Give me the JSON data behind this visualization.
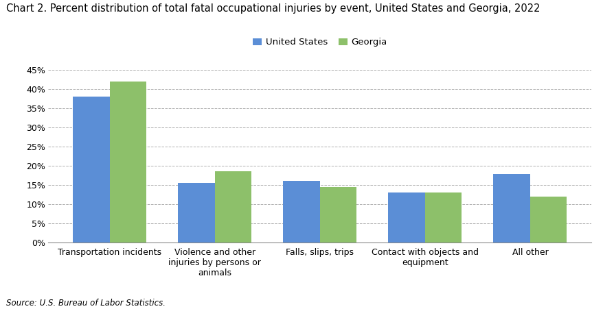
{
  "title": "Chart 2. Percent distribution of total fatal occupational injuries by event, United States and Georgia, 2022",
  "categories": [
    "Transportation incidents",
    "Violence and other\ninjuries by persons or\nanimals",
    "Falls, slips, trips",
    "Contact with objects and\nequipment",
    "All other"
  ],
  "us_values": [
    38.0,
    15.5,
    16.0,
    13.0,
    17.8
  ],
  "ga_values": [
    42.0,
    18.5,
    14.5,
    13.0,
    12.0
  ],
  "us_color": "#5B8ED6",
  "ga_color": "#8DC06A",
  "us_label": "United States",
  "ga_label": "Georgia",
  "ylim": [
    0,
    47
  ],
  "yticks": [
    0,
    5,
    10,
    15,
    20,
    25,
    30,
    35,
    40,
    45
  ],
  "bar_width": 0.35,
  "source": "Source: U.S. Bureau of Labor Statistics.",
  "title_fontsize": 10.5,
  "legend_fontsize": 9.5,
  "tick_fontsize": 9,
  "source_fontsize": 8.5
}
